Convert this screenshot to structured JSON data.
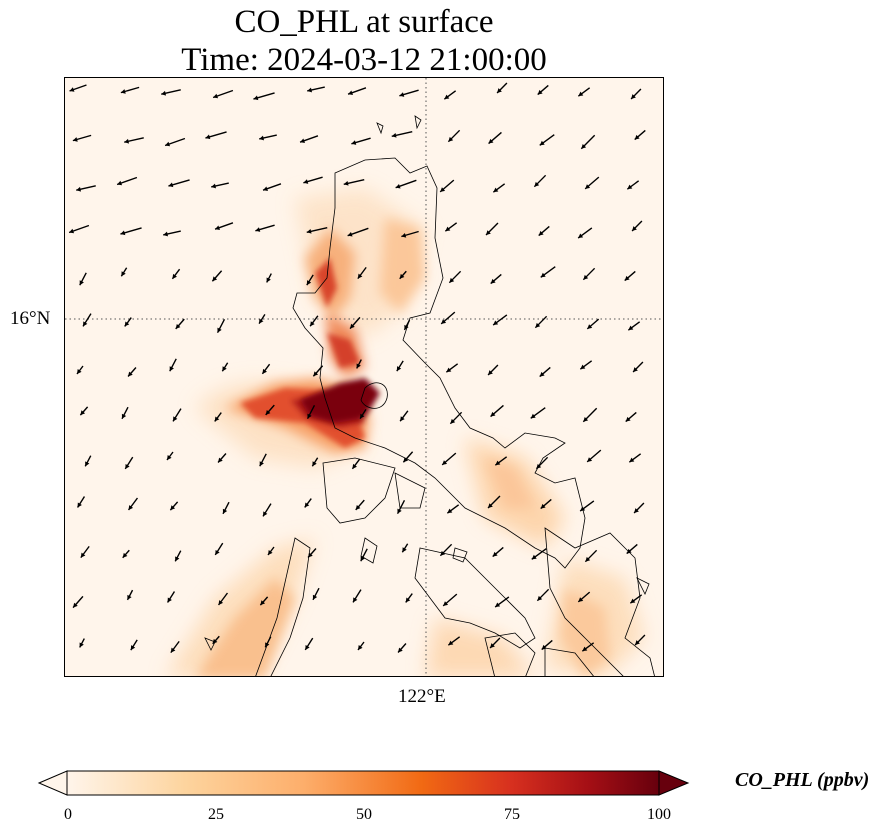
{
  "title": {
    "line1": "CO_PHL at surface",
    "line2": "Time: 2024-03-12 21:00:00"
  },
  "axes": {
    "lat_tick": "16°N",
    "lon_tick": "122°E"
  },
  "colorbar": {
    "label": "CO_PHL (ppbv)",
    "ticks": [
      "0",
      "25",
      "50",
      "75",
      "100"
    ],
    "min": 0,
    "max": 100,
    "colors": [
      "#fff5eb",
      "#fdd49e",
      "#fdae6b",
      "#f16913",
      "#d7301f",
      "#a50f15",
      "#67000d"
    ],
    "extend": "both"
  },
  "map": {
    "gridlines": "dotted",
    "colors": {
      "background": "#fff5eb",
      "coast": "#000000",
      "vector": "#000000"
    }
  }
}
